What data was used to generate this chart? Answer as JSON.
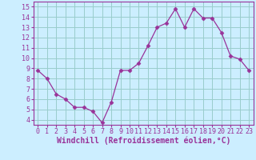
{
  "x": [
    0,
    1,
    2,
    3,
    4,
    5,
    6,
    7,
    8,
    9,
    10,
    11,
    12,
    13,
    14,
    15,
    16,
    17,
    18,
    19,
    20,
    21,
    22,
    23
  ],
  "y": [
    8.8,
    8.0,
    6.5,
    6.0,
    5.2,
    5.2,
    4.8,
    3.7,
    5.7,
    8.8,
    8.8,
    9.5,
    11.2,
    13.0,
    13.4,
    14.8,
    13.0,
    14.8,
    13.9,
    13.9,
    12.5,
    10.2,
    9.9,
    8.8
  ],
  "line_color": "#993399",
  "marker": "D",
  "marker_size": 2.5,
  "bg_color": "#cceeff",
  "grid_color": "#99cccc",
  "xlabel": "Windchill (Refroidissement éolien,°C)",
  "ylabel": "",
  "title": "",
  "xlim": [
    -0.5,
    23.5
  ],
  "ylim": [
    3.5,
    15.5
  ],
  "yticks": [
    4,
    5,
    6,
    7,
    8,
    9,
    10,
    11,
    12,
    13,
    14,
    15
  ],
  "xticks": [
    0,
    1,
    2,
    3,
    4,
    5,
    6,
    7,
    8,
    9,
    10,
    11,
    12,
    13,
    14,
    15,
    16,
    17,
    18,
    19,
    20,
    21,
    22,
    23
  ],
  "xlabel_fontsize": 7.0,
  "tick_fontsize": 6.0,
  "label_color": "#993399",
  "spine_color": "#993399"
}
